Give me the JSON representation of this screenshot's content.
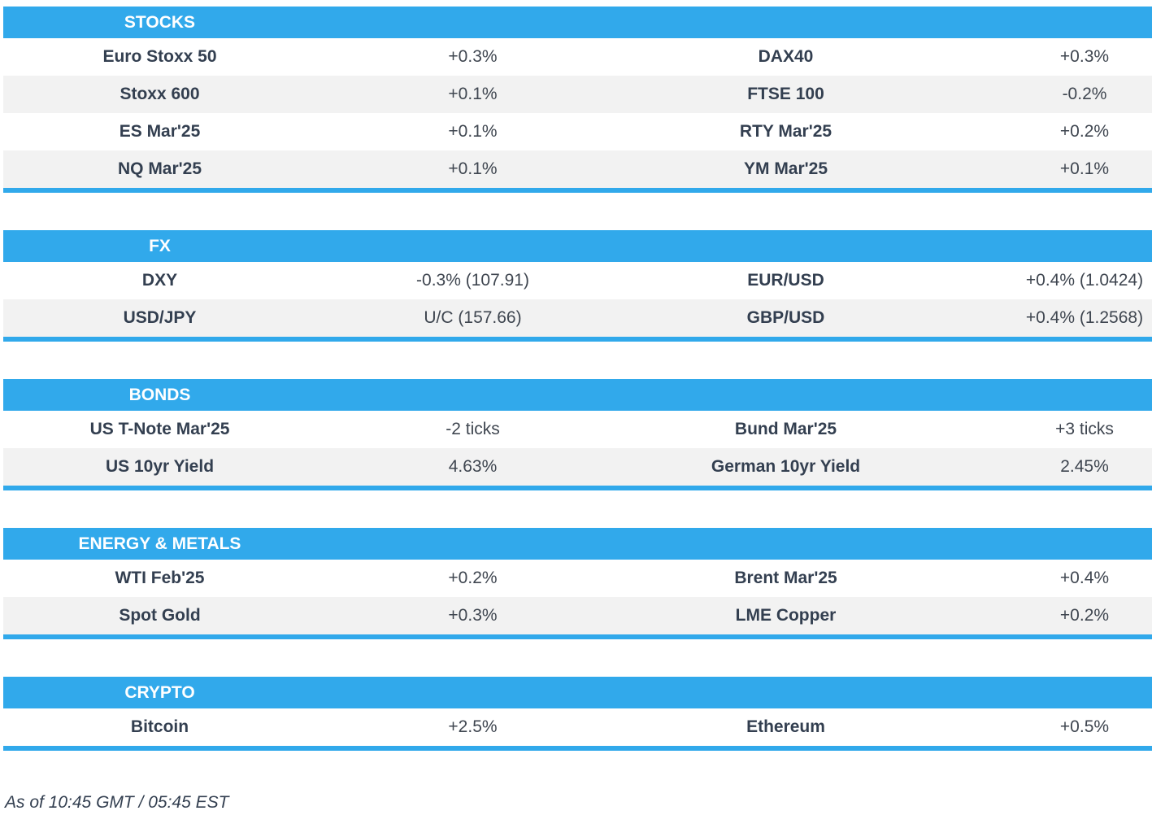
{
  "colors": {
    "accent_blue": "#31a9eb",
    "row_alt_gray": "#f2f2f2",
    "label_text": "#333f50",
    "value_text": "#3f4650",
    "header_text": "#ffffff"
  },
  "sections": [
    {
      "id": "stocks",
      "title": "STOCKS",
      "rows": [
        [
          "Euro Stoxx 50",
          "+0.3%",
          "DAX40",
          "+0.3%"
        ],
        [
          "Stoxx 600",
          "+0.1%",
          "FTSE 100",
          "-0.2%"
        ],
        [
          "ES Mar'25",
          "+0.1%",
          "RTY Mar'25",
          "+0.2%"
        ],
        [
          "NQ Mar'25",
          "+0.1%",
          "YM Mar'25",
          "+0.1%"
        ]
      ]
    },
    {
      "id": "fx",
      "title": "FX",
      "rows": [
        [
          "DXY",
          "-0.3% (107.91)",
          "EUR/USD",
          "+0.4% (1.0424)"
        ],
        [
          "USD/JPY",
          "U/C (157.66)",
          "GBP/USD",
          "+0.4% (1.2568)"
        ]
      ]
    },
    {
      "id": "bonds",
      "title": "BONDS",
      "rows": [
        [
          "US T-Note Mar'25",
          "-2 ticks",
          "Bund Mar'25",
          "+3 ticks"
        ],
        [
          "US 10yr Yield",
          "4.63%",
          "German 10yr Yield",
          "2.45%"
        ]
      ]
    },
    {
      "id": "energy-metals",
      "title": "ENERGY & METALS",
      "rows": [
        [
          "WTI Feb'25",
          "+0.2%",
          "Brent Mar'25",
          "+0.4%"
        ],
        [
          "Spot Gold",
          "+0.3%",
          "LME Copper",
          "+0.2%"
        ]
      ]
    },
    {
      "id": "crypto",
      "title": "CRYPTO",
      "rows": [
        [
          "Bitcoin",
          "+2.5%",
          "Ethereum",
          "+0.5%"
        ]
      ]
    }
  ],
  "footer": {
    "timestamp": "As of 10:45 GMT / 05:45 EST"
  }
}
